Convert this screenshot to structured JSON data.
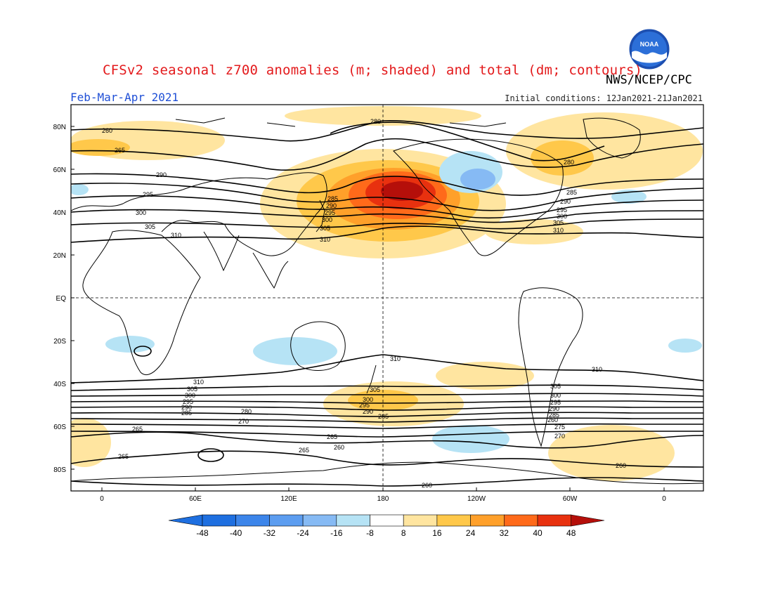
{
  "title": "CFSv2 seasonal z700 anomalies (m; shaded) and total (dm; contours)",
  "agency": "NWS/NCEP/CPC",
  "logo_text": "NOAA",
  "period": "Feb-Mar-Apr 2021",
  "initial_conditions": "Initial conditions: 12Jan2021-21Jan2021",
  "lat_labels": [
    "80N",
    "60N",
    "40N",
    "20N",
    "EQ",
    "20S",
    "40S",
    "60S",
    "80S"
  ],
  "lon_labels": [
    "0",
    "60E",
    "120E",
    "180",
    "120W",
    "60W",
    "0"
  ],
  "colorbar": {
    "ticks": [
      "-48",
      "-40",
      "-32",
      "-24",
      "-16",
      "-8",
      "8",
      "16",
      "24",
      "32",
      "40",
      "48"
    ],
    "colors": [
      "#1e6fe0",
      "#3c85ea",
      "#5c9df0",
      "#86baf4",
      "#b6e3f5",
      "#ffffff",
      "#ffe5a0",
      "#ffc84a",
      "#ffa02a",
      "#ff6a1a",
      "#e8310f",
      "#b50f0a"
    ]
  },
  "contour_labels": {
    "nh": [
      "260",
      "265",
      "290",
      "295",
      "300",
      "305",
      "310",
      "310",
      "280",
      "280",
      "285",
      "290",
      "295",
      "300",
      "305",
      "310",
      "285",
      "290",
      "295",
      "300",
      "305"
    ],
    "sh": [
      "310",
      "310",
      "310",
      "305",
      "300",
      "295",
      "290",
      "285",
      "280",
      "270",
      "305",
      "300",
      "295",
      "290",
      "285",
      "260",
      "275",
      "270",
      "265",
      "265",
      "265",
      "265",
      "260",
      "260",
      "260",
      "305",
      "300",
      "295",
      "290",
      "285"
    ]
  }
}
